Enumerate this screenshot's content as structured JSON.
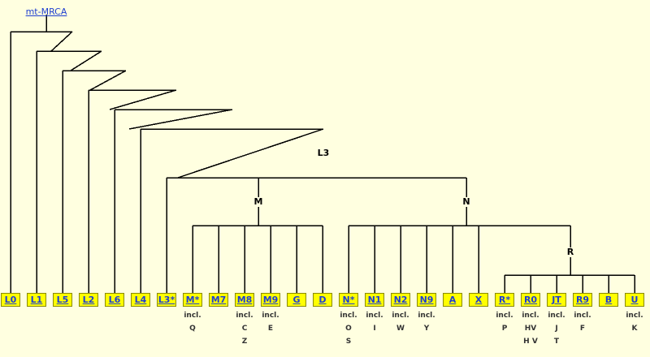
{
  "root_label": "mt-MRCA",
  "nodes": {
    "l3": "L3",
    "m": "M",
    "n": "N",
    "r": "R"
  },
  "haplogroups": [
    {
      "label": "L0"
    },
    {
      "label": "L1"
    },
    {
      "label": "L5"
    },
    {
      "label": "L2"
    },
    {
      "label": "L6"
    },
    {
      "label": "L4"
    },
    {
      "label": "L3*"
    },
    {
      "label": "M*",
      "incl": [
        "incl.",
        "Q"
      ]
    },
    {
      "label": "M7"
    },
    {
      "label": "M8",
      "incl": [
        "incl.",
        "C",
        "Z"
      ]
    },
    {
      "label": "M9",
      "incl": [
        "incl.",
        "E"
      ]
    },
    {
      "label": "G"
    },
    {
      "label": "D"
    },
    {
      "label": "N*",
      "incl": [
        "incl.",
        "O",
        "S"
      ]
    },
    {
      "label": "N1",
      "incl": [
        "incl.",
        "I"
      ]
    },
    {
      "label": "N2",
      "incl": [
        "incl.",
        "W"
      ]
    },
    {
      "label": "N9",
      "incl": [
        "incl.",
        "Y"
      ]
    },
    {
      "label": "A"
    },
    {
      "label": "X"
    },
    {
      "label": "R*",
      "incl": [
        "incl.",
        "P"
      ]
    },
    {
      "label": "R0",
      "incl": [
        "incl.",
        "HV",
        "H  V"
      ]
    },
    {
      "label": "JT",
      "incl": [
        "incl.",
        "J",
        "T"
      ]
    },
    {
      "label": "R9",
      "incl": [
        "incl.",
        "F"
      ]
    },
    {
      "label": "B"
    },
    {
      "label": "U",
      "incl": [
        "incl.",
        "K"
      ]
    }
  ],
  "colors": {
    "background": "#ffffe0",
    "box": "#ffff00",
    "link": "#1f3fd0",
    "line": "#000000"
  }
}
